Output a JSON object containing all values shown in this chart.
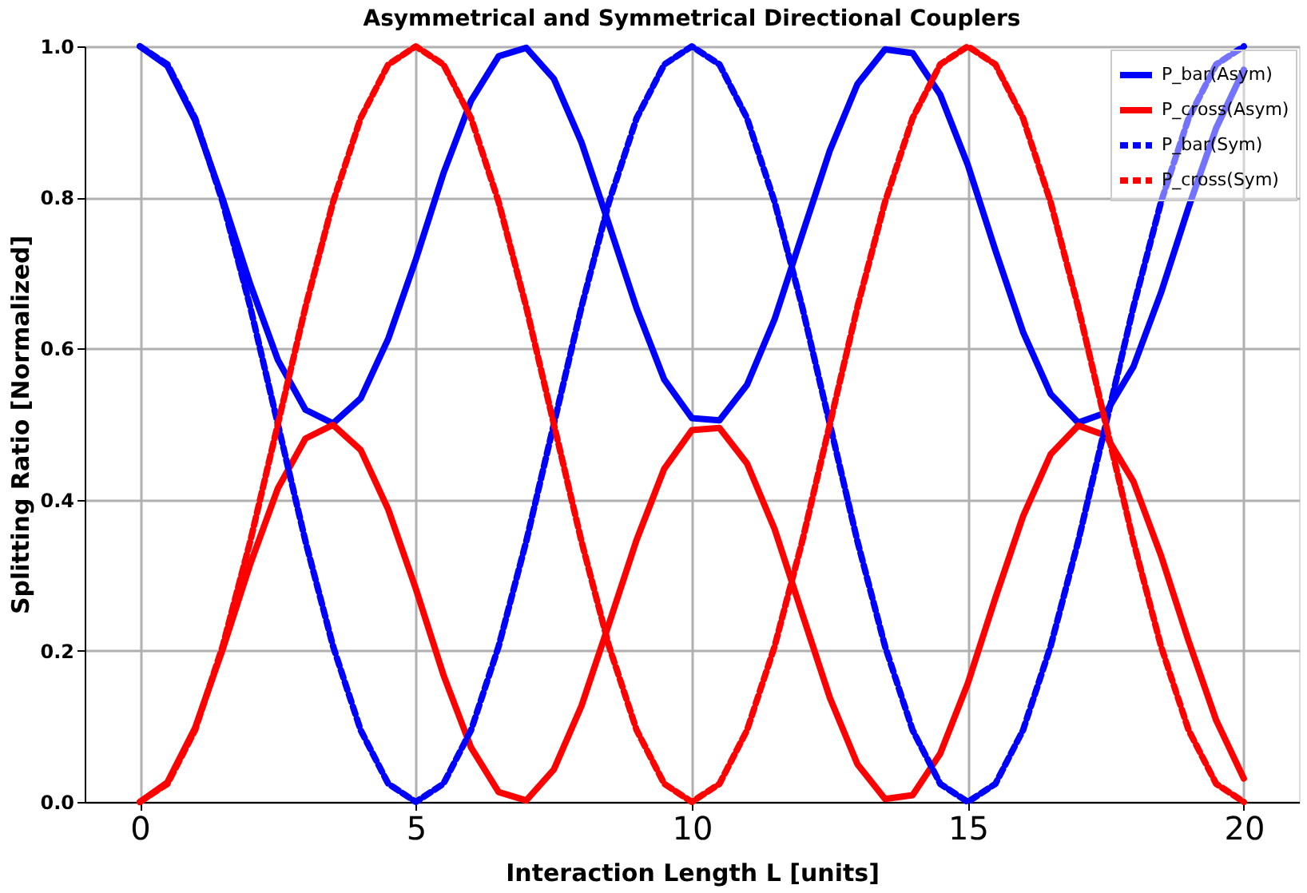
{
  "chart_data": {
    "type": "line",
    "title": "Asymmetrical and Symmetrical Directional Couplers",
    "xlabel": "Interaction Length L [units]",
    "ylabel": "Splitting Ratio [Normalized]",
    "x": [
      0,
      0.5,
      1,
      1.5,
      2,
      2.5,
      3,
      3.5,
      4,
      4.5,
      5,
      5.5,
      6,
      6.5,
      7,
      7.5,
      8,
      8.5,
      9,
      9.5,
      10,
      10.5,
      11,
      11.5,
      12,
      12.5,
      13,
      13.5,
      14,
      14.5,
      15,
      15.5,
      16,
      16.5,
      17,
      17.5,
      18,
      18.5,
      19,
      19.5,
      20
    ],
    "series": [
      {
        "name": "P_bar(Asym)",
        "color": "#0000ff",
        "line_style": "solid",
        "values": [
          1,
          0.974,
          0.902,
          0.798,
          0.685,
          0.585,
          0.519,
          0.501,
          0.534,
          0.613,
          0.718,
          0.832,
          0.928,
          0.987,
          0.998,
          0.957,
          0.873,
          0.764,
          0.653,
          0.559,
          0.508,
          0.505,
          0.552,
          0.639,
          0.751,
          0.862,
          0.95,
          0.996,
          0.991,
          0.936,
          0.843,
          0.73,
          0.622,
          0.54,
          0.502,
          0.515,
          0.576,
          0.674,
          0.787,
          0.892,
          0.969
        ]
      },
      {
        "name": "P_cross(Asym)",
        "color": "#ff0000",
        "line_style": "solid",
        "values": [
          0,
          0.026,
          0.098,
          0.202,
          0.315,
          0.415,
          0.481,
          0.499,
          0.466,
          0.387,
          0.282,
          0.168,
          0.072,
          0.013,
          0.002,
          0.043,
          0.127,
          0.236,
          0.347,
          0.441,
          0.492,
          0.495,
          0.448,
          0.361,
          0.249,
          0.138,
          0.05,
          0.004,
          0.009,
          0.064,
          0.157,
          0.27,
          0.378,
          0.46,
          0.498,
          0.485,
          0.424,
          0.326,
          0.213,
          0.108,
          0.031
        ]
      },
      {
        "name": "P_bar(Sym)",
        "color": "#0000ff",
        "line_style": "dashed",
        "values": [
          1,
          0.976,
          0.905,
          0.794,
          0.655,
          0.5,
          0.345,
          0.206,
          0.095,
          0.024,
          0,
          0.024,
          0.095,
          0.206,
          0.345,
          0.5,
          0.655,
          0.794,
          0.905,
          0.976,
          1,
          0.976,
          0.905,
          0.794,
          0.655,
          0.5,
          0.345,
          0.206,
          0.095,
          0.024,
          0,
          0.024,
          0.095,
          0.206,
          0.345,
          0.5,
          0.655,
          0.794,
          0.905,
          0.976,
          1
        ]
      },
      {
        "name": "P_cross(Sym)",
        "color": "#ff0000",
        "line_style": "dashed",
        "values": [
          0,
          0.024,
          0.095,
          0.206,
          0.345,
          0.5,
          0.655,
          0.794,
          0.905,
          0.976,
          1,
          0.976,
          0.905,
          0.794,
          0.655,
          0.5,
          0.345,
          0.206,
          0.095,
          0.024,
          0,
          0.024,
          0.095,
          0.206,
          0.345,
          0.5,
          0.655,
          0.794,
          0.905,
          0.976,
          1,
          0.976,
          0.905,
          0.794,
          0.655,
          0.5,
          0.345,
          0.206,
          0.095,
          0.024,
          0
        ]
      }
    ],
    "xlim": [
      -1,
      21
    ],
    "xticks": [
      0,
      5,
      10,
      15,
      20
    ],
    "ylim": [
      0,
      1
    ],
    "yticks": [
      {
        "value": 0,
        "label": "0.0"
      },
      {
        "value": 0.2,
        "label": "0.2"
      },
      {
        "value": 0.4,
        "label": "0.4"
      },
      {
        "value": 0.6,
        "label": "0.6"
      },
      {
        "value": 0.8,
        "label": "0.8"
      },
      {
        "value": 1,
        "label": "1.0"
      }
    ],
    "grid": true,
    "legend": "top right",
    "marker": "none"
  }
}
